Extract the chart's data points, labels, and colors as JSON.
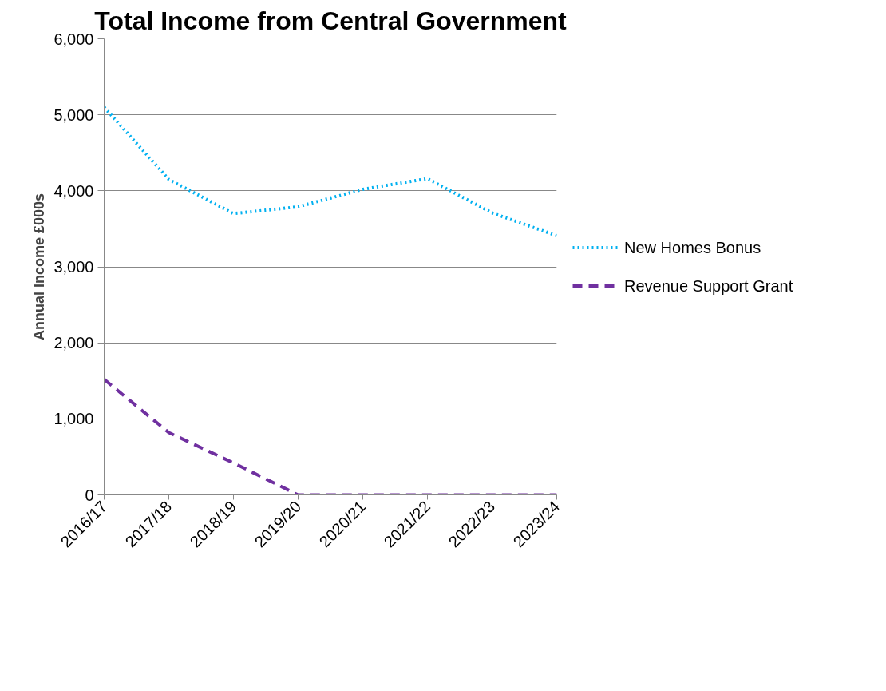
{
  "chart_data": {
    "type": "line",
    "title": "Total Income from Central Government",
    "ylabel": "Annual Income £000s",
    "categories": [
      "2016/17",
      "2017/18",
      "2018/19",
      "2019/20",
      "2020/21",
      "2021/22",
      "2022/23",
      "2023/24"
    ],
    "series": [
      {
        "name": "New Homes Bonus",
        "color": "#00b0f0",
        "line_style": "dotted",
        "values": [
          5100,
          4150,
          3700,
          3790,
          4020,
          4160,
          3710,
          3410
        ]
      },
      {
        "name": "Revenue Support Grant",
        "color": "#7030a0",
        "line_style": "dashed",
        "values": [
          1520,
          820,
          420,
          0,
          0,
          0,
          0,
          0
        ]
      }
    ],
    "ylim": [
      0,
      6000
    ],
    "yticks": [
      {
        "value": 0,
        "label": "0"
      },
      {
        "value": 1000,
        "label": "1,000"
      },
      {
        "value": 2000,
        "label": "2,000"
      },
      {
        "value": 3000,
        "label": "3,000"
      },
      {
        "value": 4000,
        "label": "4,000"
      },
      {
        "value": 5000,
        "label": "5,000"
      },
      {
        "value": 6000,
        "label": "6,000"
      }
    ],
    "grid": "y",
    "legend": "right",
    "marker": "none"
  }
}
